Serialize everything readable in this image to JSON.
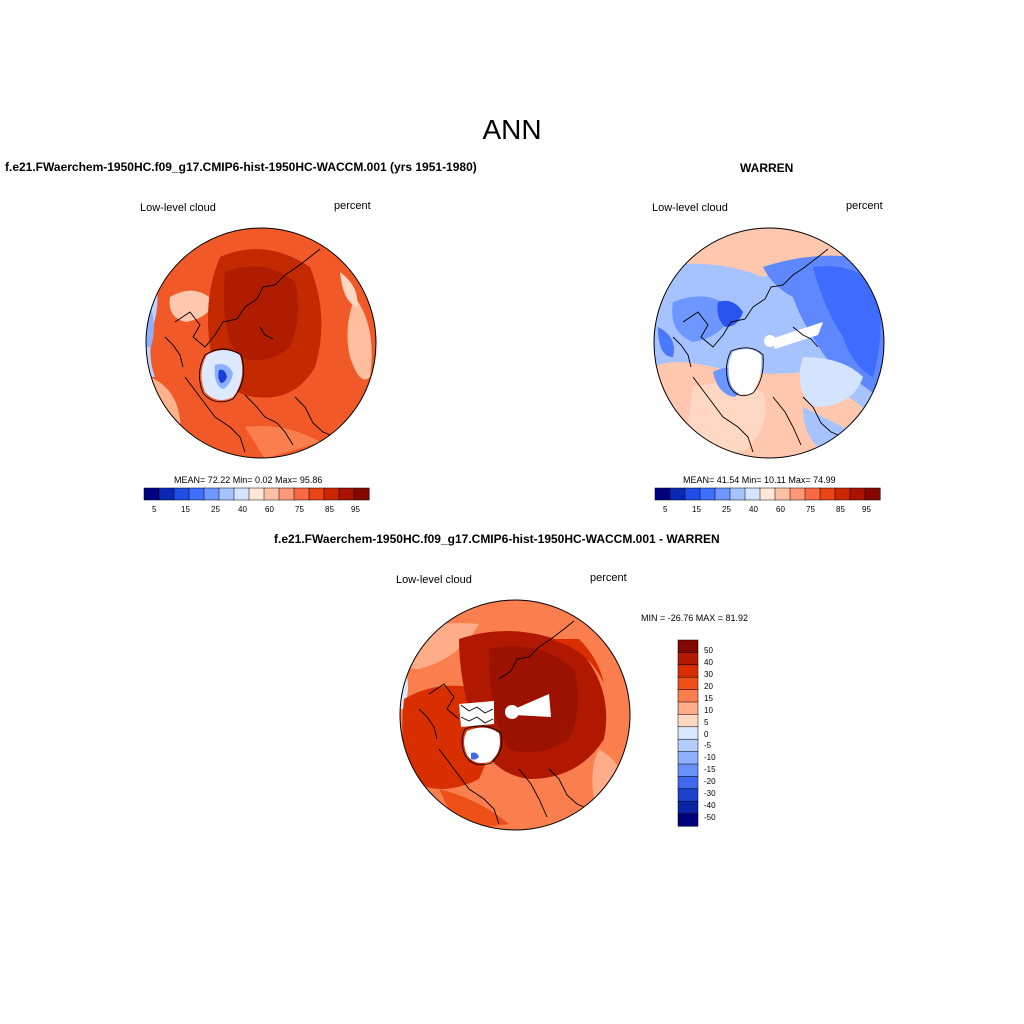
{
  "title": "ANN",
  "colors": {
    "scale": [
      "#000080",
      "#0a28b4",
      "#1e4ee6",
      "#3c6eff",
      "#6e96ff",
      "#a6c2ff",
      "#d4e4ff",
      "#ffe6d6",
      "#ffc0a4",
      "#ff9878",
      "#f86a44",
      "#ea4414",
      "#cc2800",
      "#a81400",
      "#820800"
    ],
    "diff_scale": [
      "#820800",
      "#b01800",
      "#d82e00",
      "#ee5018",
      "#fa7e4e",
      "#ffac88",
      "#ffd8c4",
      "#dae8ff",
      "#b4cdff",
      "#8eb0ff",
      "#6890ff",
      "#3e68f0",
      "#1c42cc",
      "#0a24a4",
      "#00007c"
    ],
    "coast": "#000000"
  },
  "panels": [
    {
      "id": "model",
      "title": "f.e21.FWaerchem-1950HC.f09_g17.CMIP6-hist-1950HC-WACCM.001 (yrs 1951-1980)",
      "left_label": "Low-level cloud",
      "right_label": "percent",
      "stats": "MEAN=  72.22  Min=   0.02  Max=  95.86",
      "colorbar_ticks": [
        "5",
        "15",
        "25",
        "40",
        "60",
        "75",
        "85",
        "95"
      ]
    },
    {
      "id": "obs",
      "title": "WARREN",
      "left_label": "Low-level cloud",
      "right_label": "percent",
      "stats": "MEAN=  41.54  Min=  10.11  Max=  74.99",
      "colorbar_ticks": [
        "5",
        "15",
        "25",
        "40",
        "60",
        "75",
        "85",
        "95"
      ]
    },
    {
      "id": "diff",
      "title": "f.e21.FWaerchem-1950HC.f09_g17.CMIP6-hist-1950HC-WACCM.001 - WARREN",
      "left_label": "Low-level cloud",
      "right_label": "percent",
      "stats": "MIN = -26.76 MAX =  81.92",
      "colorbar_ticks": [
        "50",
        "40",
        "30",
        "20",
        "15",
        "10",
        "5",
        "0",
        "-5",
        "-10",
        "-15",
        "-20",
        "-30",
        "-40",
        "-50"
      ]
    }
  ]
}
